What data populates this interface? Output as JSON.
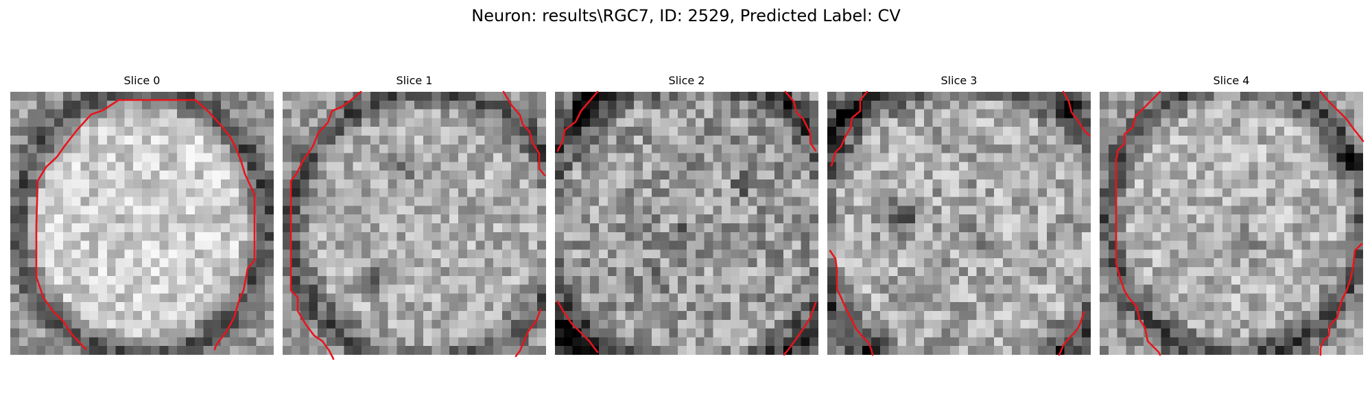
{
  "figure": {
    "title": "Neuron: results\\RGC7, ID: 2529, Predicted Label: CV"
  },
  "colors": {
    "contour": "#e8141c",
    "background": "#ffffff"
  },
  "panels": [
    {
      "title": "Slice 0"
    },
    {
      "title": "Slice 1"
    },
    {
      "title": "Slice 2"
    },
    {
      "title": "Slice 3"
    },
    {
      "title": "Slice 4"
    }
  ]
}
